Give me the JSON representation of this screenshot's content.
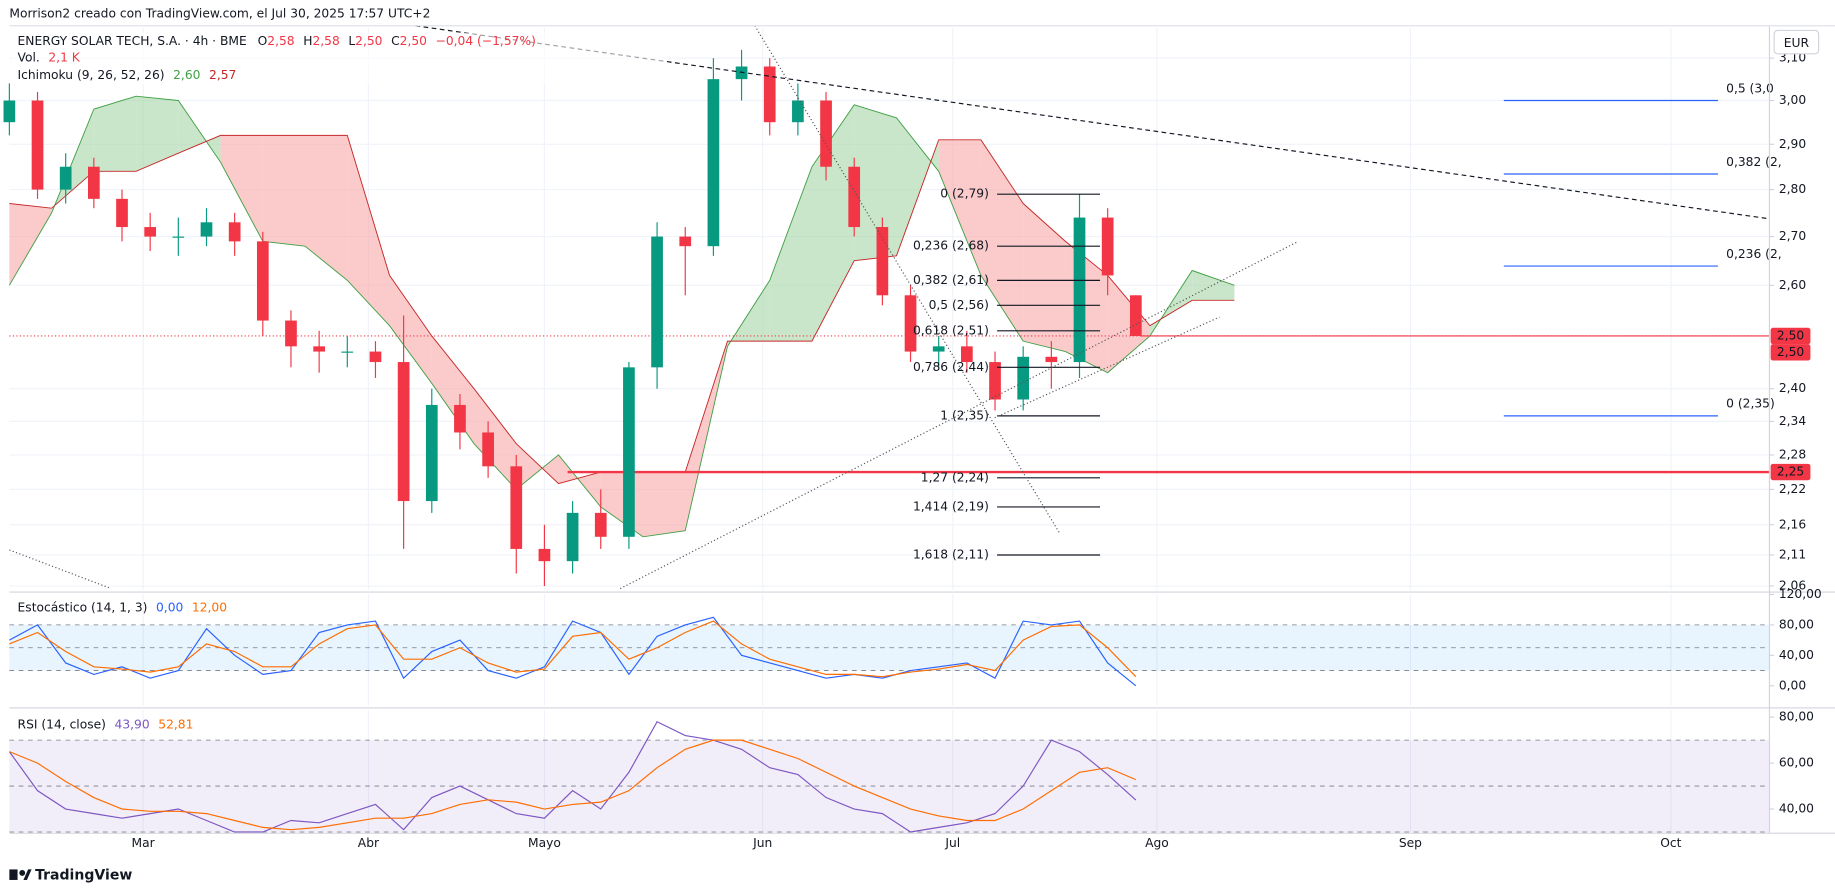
{
  "header": "Morrison2 creado con TradingView.com, el Jul 30, 2025 17:57 UTC+2",
  "currency": "EUR",
  "footer": "TradingView",
  "chart_data": [
    {
      "type": "candlestick",
      "title": "ENERGY SOLAR TECH, S.A. · 4h · BME",
      "ohlc_legend": [
        {
          "label": "O",
          "value": "2,58"
        },
        {
          "label": "H",
          "value": "2,58"
        },
        {
          "label": "L",
          "value": "2,50"
        },
        {
          "label": "C",
          "value": "2,50"
        }
      ],
      "change": "−0,04 (−1,57%)",
      "volume_label": "Vol.",
      "volume_value": "2,1 K",
      "log_scale": true,
      "grid": true,
      "up_color": "#089981",
      "down_color": "#f23645",
      "xlim": [
        0,
        250
      ],
      "xticks": [
        {
          "value": 19,
          "label": "Mar"
        },
        {
          "value": 51,
          "label": "Abr"
        },
        {
          "value": 76,
          "label": "Mayo"
        },
        {
          "value": 107,
          "label": "Jun"
        },
        {
          "value": 134,
          "label": "Jul"
        },
        {
          "value": 163,
          "label": "Ago"
        },
        {
          "value": 199,
          "label": "Sep"
        },
        {
          "value": 236,
          "label": "Oct"
        }
      ],
      "ylim": [
        2.054,
        3.173
      ],
      "yticks": [
        {
          "value": 3.1,
          "label": "3,10"
        },
        {
          "value": 3.0,
          "label": "3,00"
        },
        {
          "value": 2.9,
          "label": "2,90"
        },
        {
          "value": 2.8,
          "label": "2,80"
        },
        {
          "value": 2.7,
          "label": "2,70"
        },
        {
          "value": 2.6,
          "label": "2,60"
        },
        {
          "value": 2.4,
          "label": "2,40"
        },
        {
          "value": 2.34,
          "label": "2,34"
        },
        {
          "value": 2.28,
          "label": "2,28"
        },
        {
          "value": 2.22,
          "label": "2,22"
        },
        {
          "value": 2.16,
          "label": "2,16"
        },
        {
          "value": 2.11,
          "label": "2,11"
        },
        {
          "value": 2.06,
          "label": "2,06"
        }
      ],
      "x": [
        0,
        4,
        8,
        12,
        16,
        20,
        24,
        28,
        32,
        36,
        40,
        44,
        48,
        52,
        56,
        60,
        64,
        68,
        72,
        76,
        80,
        84,
        88,
        92,
        96,
        100,
        104,
        108,
        112,
        116,
        120,
        124,
        128,
        132,
        136,
        140,
        144,
        148,
        152,
        156,
        160
      ],
      "open": [
        2.95,
        3.0,
        2.8,
        2.85,
        2.78,
        2.72,
        2.7,
        2.7,
        2.73,
        2.69,
        2.53,
        2.48,
        2.47,
        2.47,
        2.45,
        2.2,
        2.37,
        2.32,
        2.26,
        2.12,
        2.1,
        2.18,
        2.14,
        2.44,
        2.7,
        2.68,
        3.05,
        3.08,
        2.95,
        3.0,
        2.85,
        2.72,
        2.58,
        2.47,
        2.48,
        2.45,
        2.38,
        2.46,
        2.45,
        2.74,
        2.58
      ],
      "high": [
        3.04,
        3.02,
        2.88,
        2.87,
        2.8,
        2.75,
        2.74,
        2.76,
        2.75,
        2.71,
        2.55,
        2.51,
        2.5,
        2.49,
        2.54,
        2.4,
        2.39,
        2.34,
        2.28,
        2.16,
        2.2,
        2.22,
        2.45,
        2.73,
        2.72,
        3.1,
        3.12,
        3.1,
        3.04,
        3.02,
        2.87,
        2.74,
        2.6,
        2.5,
        2.51,
        2.47,
        2.48,
        2.49,
        2.79,
        2.76,
        2.58
      ],
      "low": [
        2.92,
        2.78,
        2.77,
        2.76,
        2.69,
        2.67,
        2.66,
        2.68,
        2.66,
        2.5,
        2.44,
        2.43,
        2.44,
        2.42,
        2.12,
        2.18,
        2.29,
        2.24,
        2.08,
        2.06,
        2.08,
        2.12,
        2.12,
        2.4,
        2.58,
        2.66,
        3.0,
        2.92,
        2.92,
        2.82,
        2.7,
        2.56,
        2.45,
        2.44,
        2.43,
        2.36,
        2.36,
        2.4,
        2.42,
        2.58,
        2.5
      ],
      "close": [
        3.0,
        2.8,
        2.85,
        2.78,
        2.72,
        2.7,
        2.7,
        2.73,
        2.69,
        2.53,
        2.48,
        2.47,
        2.47,
        2.45,
        2.2,
        2.37,
        2.32,
        2.26,
        2.12,
        2.1,
        2.18,
        2.14,
        2.44,
        2.7,
        2.68,
        3.05,
        3.08,
        2.95,
        3.0,
        2.85,
        2.72,
        2.58,
        2.47,
        2.48,
        2.45,
        2.38,
        2.46,
        2.45,
        2.74,
        2.62,
        2.5
      ],
      "ichimoku": {
        "title": "Ichimoku (9, 26, 52, 26)",
        "x": [
          0,
          6,
          12,
          18,
          24,
          30,
          36,
          42,
          48,
          54,
          60,
          66,
          72,
          78,
          84,
          90,
          96,
          102,
          108,
          114,
          120,
          126,
          132,
          138,
          144,
          150,
          156,
          162,
          168,
          174
        ],
        "span_a": {
          "color": "#43a047",
          "legend_value": "2,60",
          "values": [
            2.6,
            2.75,
            2.98,
            3.01,
            3.0,
            2.86,
            2.69,
            2.68,
            2.61,
            2.52,
            2.41,
            2.3,
            2.22,
            2.28,
            2.19,
            2.14,
            2.15,
            2.48,
            2.61,
            2.85,
            2.99,
            2.96,
            2.84,
            2.62,
            2.49,
            2.47,
            2.43,
            2.5,
            2.63,
            2.6
          ]
        },
        "span_b": {
          "color": "#c62828",
          "legend_value": "2,57",
          "values": [
            2.77,
            2.76,
            2.84,
            2.84,
            2.88,
            2.92,
            2.92,
            2.92,
            2.92,
            2.62,
            2.5,
            2.4,
            2.3,
            2.23,
            2.25,
            2.25,
            2.25,
            2.49,
            2.49,
            2.49,
            2.65,
            2.66,
            2.91,
            2.91,
            2.77,
            2.69,
            2.62,
            2.52,
            2.57,
            2.57
          ]
        },
        "up_fill": "#a5d6a7",
        "down_fill": "#f8a8a8"
      },
      "fib_left": {
        "color": "#131722",
        "levels": [
          {
            "label": "0 (2,79)",
            "price": 2.79
          },
          {
            "label": "0,236 (2,68)",
            "price": 2.68
          },
          {
            "label": "0,382 (2,61)",
            "price": 2.61
          },
          {
            "label": "0,5 (2,56)",
            "price": 2.56
          },
          {
            "label": "0,618 (2,51)",
            "price": 2.51
          },
          {
            "label": "0,786 (2,44)",
            "price": 2.44
          },
          {
            "label": "1 (2,35)",
            "price": 2.35
          },
          {
            "label": "1,27 (2,24)",
            "price": 2.24
          },
          {
            "label": "1,414 (2,19)",
            "price": 2.19
          },
          {
            "label": "1,618 (2,11)",
            "price": 2.11
          }
        ]
      },
      "fib_right": {
        "color": "#2962ff",
        "levels": [
          {
            "label": "0,5 (3,0",
            "price": 3.0
          },
          {
            "label": "0,382 (2,",
            "price": 2.834
          },
          {
            "label": "0,236 (2,",
            "price": 2.639
          },
          {
            "label": "0 (2,35)",
            "price": 2.35
          }
        ]
      },
      "price_lines": [
        {
          "value": 2.5,
          "label": "2,50",
          "style": "dotted",
          "color": "#f23645"
        },
        {
          "value": 2.5,
          "label": "2,50",
          "style": "solid",
          "color": "#f23645"
        },
        {
          "value": 2.25,
          "label": "2,25",
          "style": "thick",
          "color": "#f23645"
        }
      ]
    },
    {
      "type": "line",
      "title": "Estocástico (14, 1, 3)",
      "ylim": [
        -26,
        120
      ],
      "yticks": [
        {
          "value": 120,
          "label": "120,00"
        },
        {
          "value": 80,
          "label": "80,00"
        },
        {
          "value": 40,
          "label": "40,00"
        },
        {
          "value": 0,
          "label": "0,00"
        }
      ],
      "levels": [
        80,
        50,
        20
      ],
      "band_color": "#2196f3",
      "x": [
        0,
        4,
        8,
        12,
        16,
        20,
        24,
        28,
        32,
        36,
        40,
        44,
        48,
        52,
        56,
        60,
        64,
        68,
        72,
        76,
        80,
        84,
        88,
        92,
        96,
        100,
        104,
        108,
        112,
        116,
        120,
        124,
        128,
        132,
        136,
        140,
        144,
        148,
        152,
        156,
        160
      ],
      "series": [
        {
          "color": "#2962ff",
          "legend_value": "0,00",
          "values": [
            60,
            80,
            30,
            15,
            25,
            10,
            20,
            75,
            40,
            15,
            20,
            70,
            80,
            85,
            10,
            45,
            60,
            20,
            10,
            25,
            85,
            70,
            15,
            65,
            80,
            90,
            40,
            30,
            20,
            10,
            15,
            10,
            20,
            25,
            30,
            10,
            85,
            80,
            85,
            30,
            0
          ]
        },
        {
          "color": "#ff6d00",
          "legend_value": "12,00",
          "values": [
            55,
            70,
            45,
            25,
            22,
            18,
            25,
            55,
            45,
            25,
            25,
            55,
            75,
            80,
            35,
            35,
            50,
            30,
            18,
            22,
            65,
            70,
            35,
            50,
            70,
            85,
            55,
            35,
            25,
            15,
            15,
            12,
            18,
            22,
            28,
            20,
            60,
            78,
            80,
            50,
            12
          ]
        }
      ]
    },
    {
      "type": "line",
      "title": "RSI (14, close)",
      "ylim": [
        30,
        83
      ],
      "yticks": [
        {
          "value": 80,
          "label": "80,00"
        },
        {
          "value": 60,
          "label": "60,00"
        },
        {
          "value": 40,
          "label": "40,00"
        }
      ],
      "levels": [
        70,
        50,
        30
      ],
      "band_color": "#7e57c2",
      "x": [
        0,
        4,
        8,
        12,
        16,
        20,
        24,
        28,
        32,
        36,
        40,
        44,
        48,
        52,
        56,
        60,
        64,
        68,
        72,
        76,
        80,
        84,
        88,
        92,
        96,
        100,
        104,
        108,
        112,
        116,
        120,
        124,
        128,
        132,
        136,
        140,
        144,
        148,
        152,
        156,
        160
      ],
      "series": [
        {
          "color": "#7e57c2",
          "legend_value": "43,90",
          "values": [
            65,
            48,
            40,
            38,
            36,
            38,
            40,
            35,
            30,
            30,
            35,
            34,
            38,
            42,
            31,
            45,
            50,
            44,
            38,
            36,
            48,
            40,
            56,
            78,
            72,
            70,
            66,
            58,
            55,
            45,
            40,
            38,
            30,
            32,
            34,
            38,
            50,
            70,
            65,
            55,
            43.9
          ]
        },
        {
          "color": "#ff6d00",
          "legend_value": "52,81",
          "values": [
            65,
            60,
            52,
            45,
            40,
            39,
            39,
            38,
            35,
            32,
            31,
            32,
            34,
            36,
            36,
            38,
            42,
            44,
            43,
            40,
            42,
            43,
            48,
            58,
            66,
            70,
            70,
            66,
            62,
            56,
            50,
            45,
            40,
            37,
            35,
            35,
            40,
            48,
            56,
            58,
            52.81
          ]
        }
      ]
    }
  ]
}
